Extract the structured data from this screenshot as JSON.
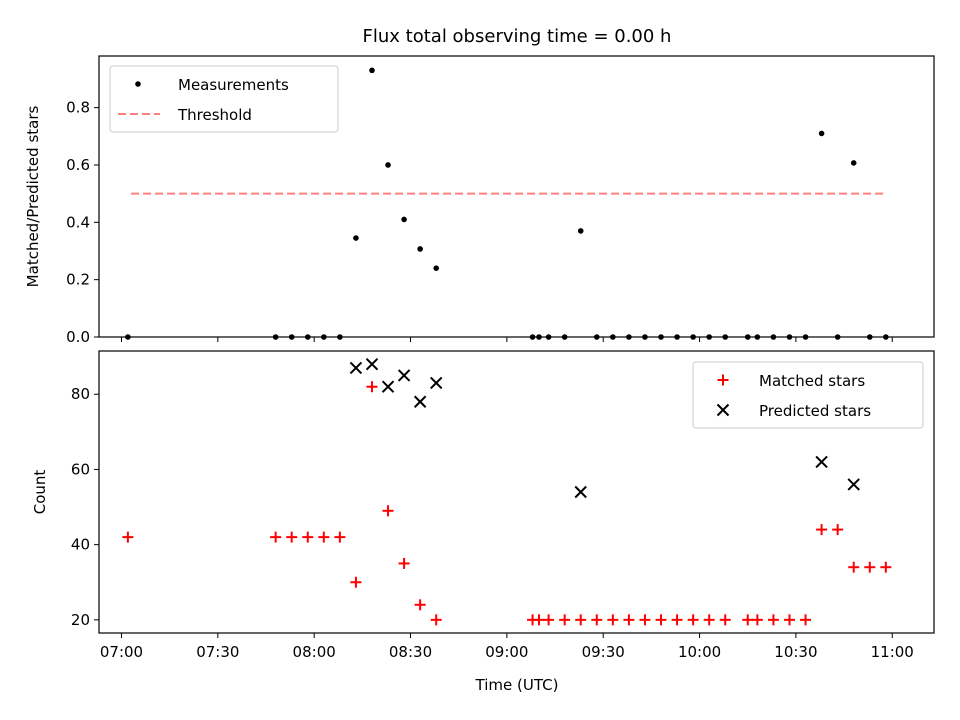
{
  "chart_data": [
    {
      "type": "scatter",
      "title": "Flux total observing time = 0.00 h",
      "xlabel": "",
      "ylabel": "Matched/Predicted stars",
      "ylim": [
        0,
        0.98
      ],
      "yticks": [
        0.0,
        0.2,
        0.4,
        0.6,
        0.8
      ],
      "yticklabels": [
        "0.0",
        "0.2",
        "0.4",
        "0.6",
        "0.8"
      ],
      "legend_position": "top-left",
      "grid": false,
      "series": [
        {
          "name": "Measurements",
          "kind": "scatter",
          "color": "#000000",
          "x": [
            "07:02",
            "07:48",
            "07:53",
            "07:58",
            "08:03",
            "08:08",
            "08:13",
            "08:18",
            "08:23",
            "08:28",
            "08:33",
            "08:38",
            "09:08",
            "09:10",
            "09:13",
            "09:18",
            "09:23",
            "09:28",
            "09:33",
            "09:38",
            "09:43",
            "09:48",
            "09:53",
            "09:58",
            "10:03",
            "10:08",
            "10:15",
            "10:18",
            "10:23",
            "10:28",
            "10:33",
            "10:38",
            "10:43",
            "10:48",
            "10:53",
            "10:58"
          ],
          "y": [
            0,
            0,
            0,
            0,
            0,
            0,
            0.345,
            0.93,
            0.6,
            0.41,
            0.307,
            0.24,
            0,
            0,
            0,
            0,
            0.37,
            0,
            0,
            0,
            0,
            0,
            0,
            0,
            0,
            0,
            0,
            0,
            0,
            0,
            0,
            0.71,
            0,
            0.607,
            0,
            0
          ]
        },
        {
          "name": "Threshold",
          "kind": "line",
          "style": "dashed",
          "color": "#ff7f7f",
          "x": [
            "07:03",
            "10:58"
          ],
          "y": [
            0.5,
            0.5
          ]
        }
      ]
    },
    {
      "type": "scatter",
      "title": "",
      "xlabel": "Time (UTC)",
      "ylabel": "Count",
      "ylim": [
        16.5,
        91.5
      ],
      "yticks": [
        20,
        40,
        60,
        80
      ],
      "yticklabels": [
        "20",
        "40",
        "60",
        "80"
      ],
      "xlim": [
        "06:53",
        "11:13"
      ],
      "xticks": [
        "07:00",
        "07:30",
        "08:00",
        "08:30",
        "09:00",
        "09:30",
        "10:00",
        "10:30",
        "11:00"
      ],
      "xticklabels": [
        "07:00",
        "07:30",
        "08:00",
        "08:30",
        "09:00",
        "09:30",
        "10:00",
        "10:30",
        "11:00"
      ],
      "legend_position": "top-right",
      "grid": false,
      "series": [
        {
          "name": "Matched stars",
          "marker": "plus",
          "color": "#ff0000",
          "x": [
            "07:02",
            "07:48",
            "07:53",
            "07:58",
            "08:03",
            "08:08",
            "08:13",
            "08:18",
            "08:23",
            "08:28",
            "08:33",
            "08:38",
            "09:08",
            "09:10",
            "09:13",
            "09:18",
            "09:23",
            "09:28",
            "09:33",
            "09:38",
            "09:43",
            "09:48",
            "09:53",
            "09:58",
            "10:03",
            "10:08",
            "10:15",
            "10:18",
            "10:23",
            "10:28",
            "10:33",
            "10:38",
            "10:43",
            "10:48",
            "10:53",
            "10:58"
          ],
          "y": [
            42,
            42,
            42,
            42,
            42,
            42,
            30,
            82,
            49,
            35,
            24,
            20,
            20,
            20,
            20,
            20,
            20,
            20,
            20,
            20,
            20,
            20,
            20,
            20,
            20,
            20,
            20,
            20,
            20,
            20,
            20,
            44,
            44,
            34,
            34,
            34
          ]
        },
        {
          "name": "Predicted stars",
          "marker": "x",
          "color": "#000000",
          "x": [
            "08:13",
            "08:18",
            "08:23",
            "08:28",
            "08:33",
            "08:38",
            "09:23",
            "10:38",
            "10:48"
          ],
          "y": [
            87,
            88,
            82,
            85,
            78,
            83,
            54,
            62,
            56
          ]
        }
      ]
    }
  ]
}
